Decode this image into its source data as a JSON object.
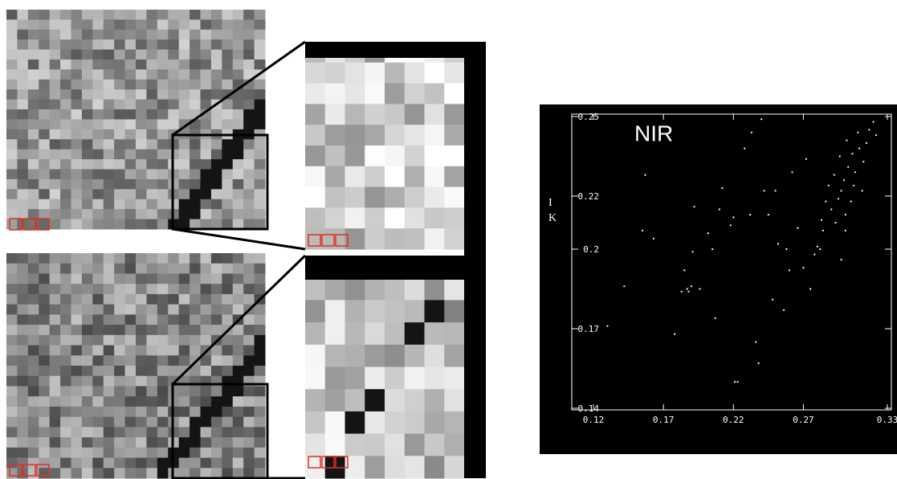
{
  "chart_data": {
    "type": "scatter",
    "title": "NIR",
    "annotations": [
      "I",
      "K"
    ],
    "color": "#ffffff",
    "grid": false,
    "xlim": [
      0.12,
      0.33
    ],
    "xticks": [
      0.12,
      0.17,
      0.22,
      0.27,
      0.33
    ],
    "ylim": [
      0.14,
      0.25
    ],
    "yticks": [
      0.14,
      0.17,
      0.2,
      0.22,
      0.25
    ],
    "x": [
      0.13,
      0.142,
      0.155,
      0.157,
      0.163,
      0.178,
      0.183,
      0.185,
      0.187,
      0.188,
      0.19,
      0.191,
      0.192,
      0.196,
      0.202,
      0.205,
      0.207,
      0.21,
      0.212,
      0.218,
      0.22,
      0.221,
      0.223,
      0.228,
      0.232,
      0.233,
      0.236,
      0.238,
      0.24,
      0.242,
      0.245,
      0.25,
      0.252,
      0.256,
      0.258,
      0.26,
      0.262,
      0.266,
      0.27,
      0.272,
      0.275,
      0.278,
      0.28,
      0.283,
      0.284,
      0.286,
      0.288,
      0.29,
      0.292,
      0.293,
      0.295,
      0.296,
      0.297,
      0.299,
      0.3,
      0.301,
      0.302,
      0.304,
      0.305,
      0.306,
      0.307,
      0.309,
      0.31,
      0.312,
      0.313,
      0.315,
      0.317,
      0.32,
      0.322,
      0.3,
      0.297,
      0.248,
      0.282
    ],
    "values": [
      0.171,
      0.186,
      0.207,
      0.228,
      0.204,
      0.168,
      0.184,
      0.192,
      0.185,
      0.184,
      0.186,
      0.199,
      0.216,
      0.185,
      0.206,
      0.2,
      0.174,
      0.215,
      0.223,
      0.209,
      0.212,
      0.15,
      0.15,
      0.238,
      0.213,
      0.244,
      0.165,
      0.157,
      0.249,
      0.222,
      0.213,
      0.222,
      0.202,
      0.177,
      0.2,
      0.192,
      0.229,
      0.208,
      0.193,
      0.234,
      0.185,
      0.198,
      0.201,
      0.211,
      0.207,
      0.218,
      0.224,
      0.215,
      0.228,
      0.21,
      0.219,
      0.235,
      0.222,
      0.226,
      0.213,
      0.241,
      0.231,
      0.218,
      0.236,
      0.224,
      0.229,
      0.244,
      0.238,
      0.222,
      0.233,
      0.24,
      0.245,
      0.248,
      0.243,
      0.207,
      0.196,
      0.181,
      0.2
    ]
  }
}
